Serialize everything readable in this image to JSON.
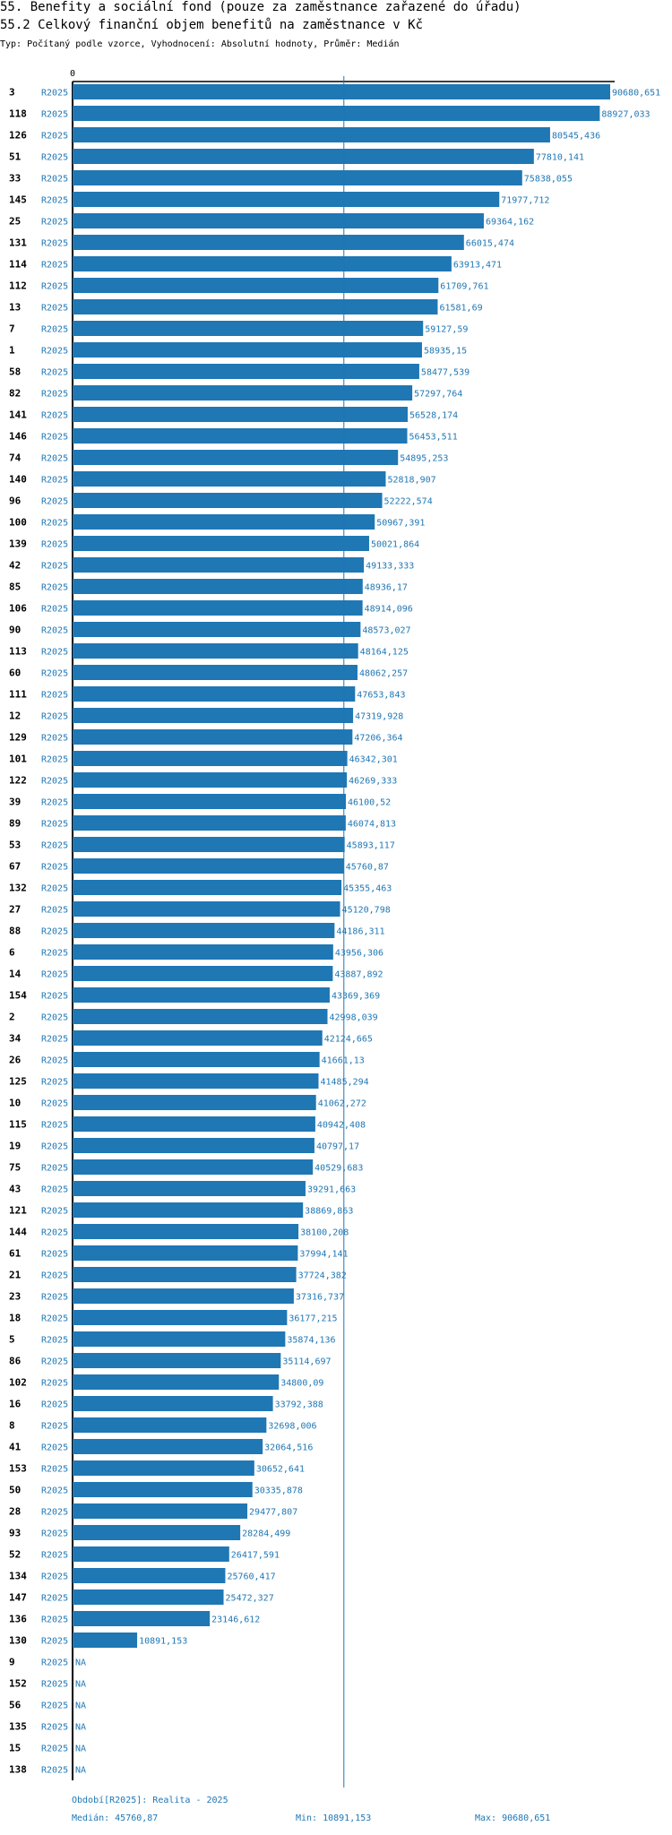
{
  "header": {
    "title": "55. Benefity a sociální fond (pouze za zaměstnance zařazené do úřadu)",
    "subtitle": "55.2 Celkový finanční objem benefitů na zaměstnance v Kč",
    "type_line": "Typ: Počítaný podle vzorce, Vyhodnocení: Absolutní hodnoty, Průměr: Medián"
  },
  "chart_data": {
    "type": "bar",
    "orientation": "horizontal",
    "title": "55.2 Celkový finanční objem benefitů na zaměstnance v Kč",
    "series_label": "R2025",
    "axis_zero_label": "0",
    "xlim": [
      0,
      90680.651
    ],
    "median": 45760.87,
    "bar_color": "#1f77b4",
    "rows": [
      {
        "id": "3",
        "period": "R2025",
        "value": 90680.651,
        "label": "90680,651"
      },
      {
        "id": "118",
        "period": "R2025",
        "value": 88927.033,
        "label": "88927,033"
      },
      {
        "id": "126",
        "period": "R2025",
        "value": 80545.436,
        "label": "80545,436"
      },
      {
        "id": "51",
        "period": "R2025",
        "value": 77810.141,
        "label": "77810,141"
      },
      {
        "id": "33",
        "period": "R2025",
        "value": 75838.055,
        "label": "75838,055"
      },
      {
        "id": "145",
        "period": "R2025",
        "value": 71977.712,
        "label": "71977,712"
      },
      {
        "id": "25",
        "period": "R2025",
        "value": 69364.162,
        "label": "69364,162"
      },
      {
        "id": "131",
        "period": "R2025",
        "value": 66015.474,
        "label": "66015,474"
      },
      {
        "id": "114",
        "period": "R2025",
        "value": 63913.471,
        "label": "63913,471"
      },
      {
        "id": "112",
        "period": "R2025",
        "value": 61709.761,
        "label": "61709,761"
      },
      {
        "id": "13",
        "period": "R2025",
        "value": 61581.69,
        "label": "61581,69"
      },
      {
        "id": "7",
        "period": "R2025",
        "value": 59127.59,
        "label": "59127,59"
      },
      {
        "id": "1",
        "period": "R2025",
        "value": 58935.15,
        "label": "58935,15"
      },
      {
        "id": "58",
        "period": "R2025",
        "value": 58477.539,
        "label": "58477,539"
      },
      {
        "id": "82",
        "period": "R2025",
        "value": 57297.764,
        "label": "57297,764"
      },
      {
        "id": "141",
        "period": "R2025",
        "value": 56528.174,
        "label": "56528,174"
      },
      {
        "id": "146",
        "period": "R2025",
        "value": 56453.511,
        "label": "56453,511"
      },
      {
        "id": "74",
        "period": "R2025",
        "value": 54895.253,
        "label": "54895,253"
      },
      {
        "id": "140",
        "period": "R2025",
        "value": 52818.907,
        "label": "52818,907"
      },
      {
        "id": "96",
        "period": "R2025",
        "value": 52222.574,
        "label": "52222,574"
      },
      {
        "id": "100",
        "period": "R2025",
        "value": 50967.391,
        "label": "50967,391"
      },
      {
        "id": "139",
        "period": "R2025",
        "value": 50021.864,
        "label": "50021,864"
      },
      {
        "id": "42",
        "period": "R2025",
        "value": 49133.333,
        "label": "49133,333"
      },
      {
        "id": "85",
        "period": "R2025",
        "value": 48936.17,
        "label": "48936,17"
      },
      {
        "id": "106",
        "period": "R2025",
        "value": 48914.096,
        "label": "48914,096"
      },
      {
        "id": "90",
        "period": "R2025",
        "value": 48573.027,
        "label": "48573,027"
      },
      {
        "id": "113",
        "period": "R2025",
        "value": 48164.125,
        "label": "48164,125"
      },
      {
        "id": "60",
        "period": "R2025",
        "value": 48062.257,
        "label": "48062,257"
      },
      {
        "id": "111",
        "period": "R2025",
        "value": 47653.843,
        "label": "47653,843"
      },
      {
        "id": "12",
        "period": "R2025",
        "value": 47319.928,
        "label": "47319,928"
      },
      {
        "id": "129",
        "period": "R2025",
        "value": 47206.364,
        "label": "47206,364"
      },
      {
        "id": "101",
        "period": "R2025",
        "value": 46342.301,
        "label": "46342,301"
      },
      {
        "id": "122",
        "period": "R2025",
        "value": 46269.333,
        "label": "46269,333"
      },
      {
        "id": "39",
        "period": "R2025",
        "value": 46100.52,
        "label": "46100,52"
      },
      {
        "id": "89",
        "period": "R2025",
        "value": 46074.813,
        "label": "46074,813"
      },
      {
        "id": "53",
        "period": "R2025",
        "value": 45893.117,
        "label": "45893,117"
      },
      {
        "id": "67",
        "period": "R2025",
        "value": 45760.87,
        "label": "45760,87"
      },
      {
        "id": "132",
        "period": "R2025",
        "value": 45355.463,
        "label": "45355,463"
      },
      {
        "id": "27",
        "period": "R2025",
        "value": 45120.798,
        "label": "45120,798"
      },
      {
        "id": "88",
        "period": "R2025",
        "value": 44186.311,
        "label": "44186,311"
      },
      {
        "id": "6",
        "period": "R2025",
        "value": 43956.306,
        "label": "43956,306"
      },
      {
        "id": "14",
        "period": "R2025",
        "value": 43887.892,
        "label": "43887,892"
      },
      {
        "id": "154",
        "period": "R2025",
        "value": 43369.369,
        "label": "43369,369"
      },
      {
        "id": "2",
        "period": "R2025",
        "value": 42998.039,
        "label": "42998,039"
      },
      {
        "id": "34",
        "period": "R2025",
        "value": 42124.665,
        "label": "42124,665"
      },
      {
        "id": "26",
        "period": "R2025",
        "value": 41661.13,
        "label": "41661,13"
      },
      {
        "id": "125",
        "period": "R2025",
        "value": 41485.294,
        "label": "41485,294"
      },
      {
        "id": "10",
        "period": "R2025",
        "value": 41062.272,
        "label": "41062,272"
      },
      {
        "id": "115",
        "period": "R2025",
        "value": 40942.408,
        "label": "40942,408"
      },
      {
        "id": "19",
        "period": "R2025",
        "value": 40797.17,
        "label": "40797,17"
      },
      {
        "id": "75",
        "period": "R2025",
        "value": 40529.683,
        "label": "40529,683"
      },
      {
        "id": "43",
        "period": "R2025",
        "value": 39291.663,
        "label": "39291,663"
      },
      {
        "id": "121",
        "period": "R2025",
        "value": 38869.863,
        "label": "38869,863"
      },
      {
        "id": "144",
        "period": "R2025",
        "value": 38100.208,
        "label": "38100,208"
      },
      {
        "id": "61",
        "period": "R2025",
        "value": 37994.141,
        "label": "37994,141"
      },
      {
        "id": "21",
        "period": "R2025",
        "value": 37724.382,
        "label": "37724,382"
      },
      {
        "id": "23",
        "period": "R2025",
        "value": 37316.737,
        "label": "37316,737"
      },
      {
        "id": "18",
        "period": "R2025",
        "value": 36177.215,
        "label": "36177,215"
      },
      {
        "id": "5",
        "period": "R2025",
        "value": 35874.136,
        "label": "35874,136"
      },
      {
        "id": "86",
        "period": "R2025",
        "value": 35114.697,
        "label": "35114,697"
      },
      {
        "id": "102",
        "period": "R2025",
        "value": 34800.09,
        "label": "34800,09"
      },
      {
        "id": "16",
        "period": "R2025",
        "value": 33792.388,
        "label": "33792,388"
      },
      {
        "id": "8",
        "period": "R2025",
        "value": 32698.006,
        "label": "32698,006"
      },
      {
        "id": "41",
        "period": "R2025",
        "value": 32064.516,
        "label": "32064,516"
      },
      {
        "id": "153",
        "period": "R2025",
        "value": 30652.641,
        "label": "30652,641"
      },
      {
        "id": "50",
        "period": "R2025",
        "value": 30335.878,
        "label": "30335,878"
      },
      {
        "id": "28",
        "period": "R2025",
        "value": 29477.807,
        "label": "29477,807"
      },
      {
        "id": "93",
        "period": "R2025",
        "value": 28284.499,
        "label": "28284,499"
      },
      {
        "id": "52",
        "period": "R2025",
        "value": 26417.591,
        "label": "26417,591"
      },
      {
        "id": "134",
        "period": "R2025",
        "value": 25760.417,
        "label": "25760,417"
      },
      {
        "id": "147",
        "period": "R2025",
        "value": 25472.327,
        "label": "25472,327"
      },
      {
        "id": "136",
        "period": "R2025",
        "value": 23146.612,
        "label": "23146,612"
      },
      {
        "id": "130",
        "period": "R2025",
        "value": 10891.153,
        "label": "10891,153"
      },
      {
        "id": "9",
        "period": "R2025",
        "value": null,
        "label": "NA"
      },
      {
        "id": "152",
        "period": "R2025",
        "value": null,
        "label": "NA"
      },
      {
        "id": "56",
        "period": "R2025",
        "value": null,
        "label": "NA"
      },
      {
        "id": "135",
        "period": "R2025",
        "value": null,
        "label": "NA"
      },
      {
        "id": "15",
        "period": "R2025",
        "value": null,
        "label": "NA"
      },
      {
        "id": "138",
        "period": "R2025",
        "value": null,
        "label": "NA"
      }
    ]
  },
  "footer": {
    "period": "Období[R2025]: Realita - 2025",
    "median": "Medián: 45760,87",
    "min": "Min: 10891,153",
    "max": "Max: 90680,651"
  }
}
